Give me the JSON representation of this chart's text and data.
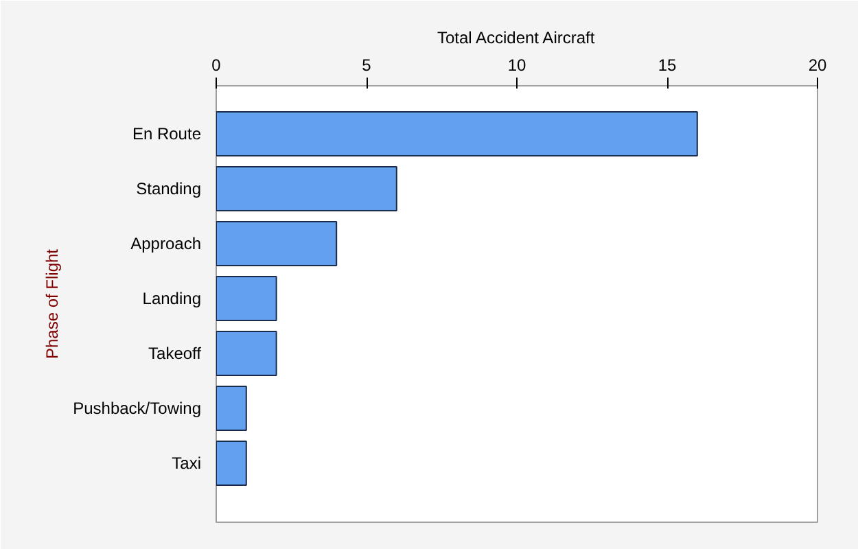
{
  "chart_data": {
    "type": "bar",
    "orientation": "horizontal",
    "xlabel": "Total Accident Aircraft",
    "ylabel": "Phase of Flight",
    "categories": [
      "En Route",
      "Standing",
      "Approach",
      "Landing",
      "Takeoff",
      "Pushback/Towing",
      "Taxi"
    ],
    "values": [
      16,
      6,
      4,
      2,
      2,
      1,
      1
    ],
    "color": "#63a0f0",
    "xlim": [
      0,
      20
    ],
    "xticks": [
      0,
      5,
      10,
      15,
      20
    ]
  }
}
